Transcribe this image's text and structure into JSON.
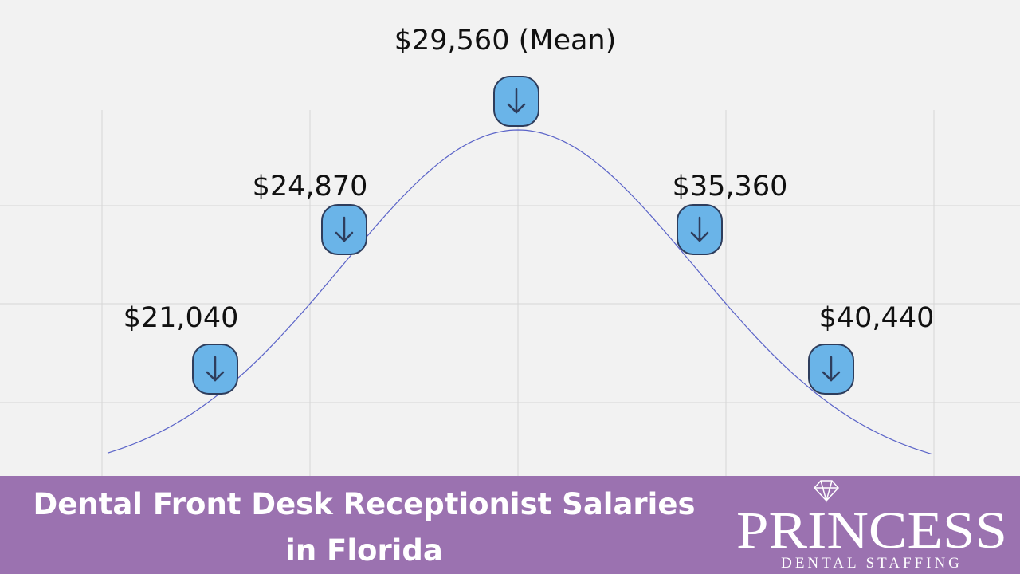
{
  "labels": [
    "$21,040",
    "$24,870",
    "$29,560 (Mean)",
    "$35,360",
    "$40,440"
  ],
  "banner": {
    "title_lines": [
      "Dental Front Desk Receptionist Salaries",
      "in Florida"
    ]
  },
  "logo": {
    "name": "PRINCESS",
    "tagline": "DENTAL STAFFING"
  }
}
